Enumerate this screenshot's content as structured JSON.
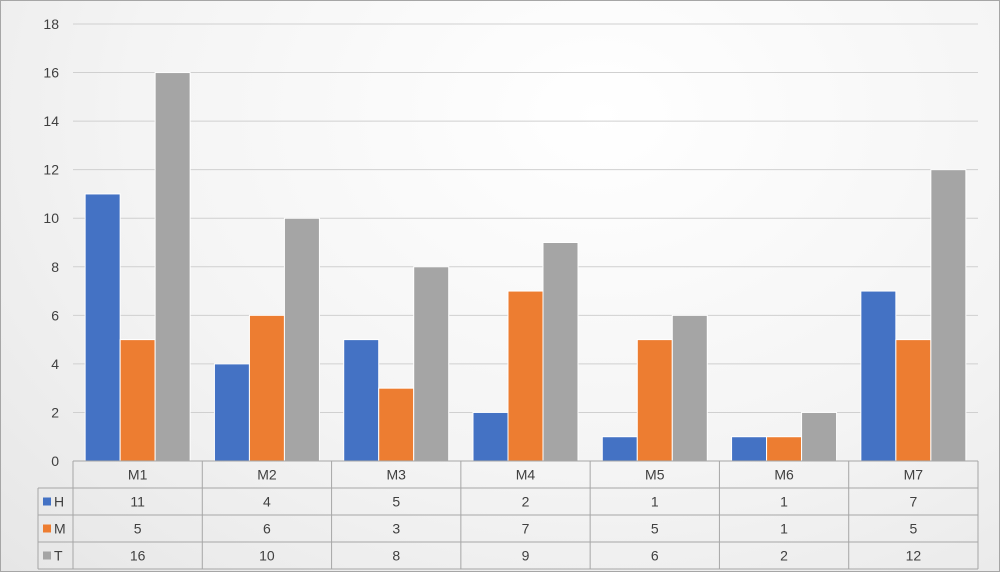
{
  "chart_data": {
    "type": "bar",
    "categories": [
      "M1",
      "M2",
      "M3",
      "M4",
      "M5",
      "M6",
      "M7"
    ],
    "series": [
      {
        "name": "H",
        "color": "#4472c4",
        "values": [
          11,
          4,
          5,
          2,
          1,
          1,
          7
        ]
      },
      {
        "name": "M",
        "color": "#ed7d31",
        "values": [
          5,
          6,
          3,
          7,
          5,
          1,
          5
        ]
      },
      {
        "name": "T",
        "color": "#a5a5a5",
        "values": [
          16,
          10,
          8,
          9,
          6,
          2,
          12
        ]
      }
    ],
    "y_ticks": [
      "0",
      "2",
      "4",
      "6",
      "8",
      "10",
      "12",
      "14",
      "16",
      "18"
    ],
    "ylim": [
      0,
      18
    ],
    "grid": true,
    "data_table": true,
    "title": "",
    "xlabel": "",
    "ylabel": ""
  }
}
